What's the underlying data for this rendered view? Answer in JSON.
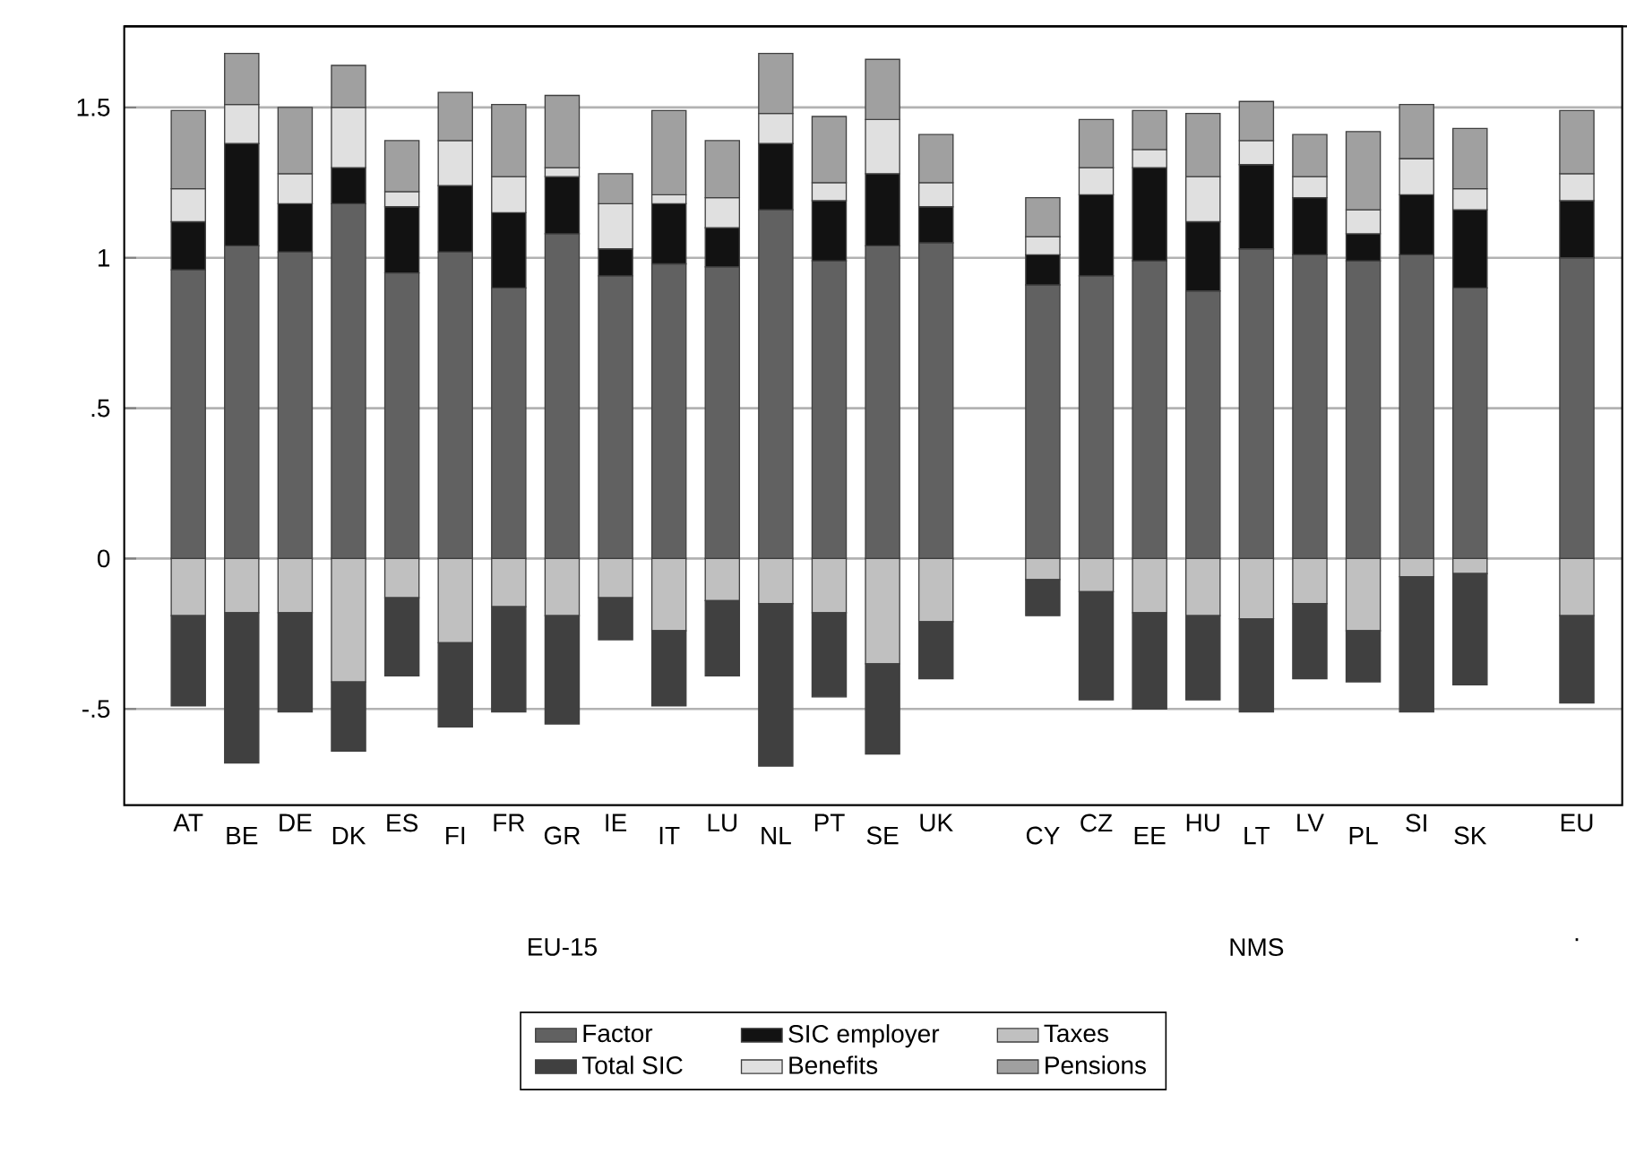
{
  "chart_data": {
    "type": "bar",
    "stacked": true,
    "categories": [
      "AT",
      "BE",
      "DE",
      "DK",
      "ES",
      "FI",
      "FR",
      "GR",
      "IE",
      "IT",
      "LU",
      "NL",
      "PT",
      "SE",
      "UK",
      null,
      "CY",
      "CZ",
      "EE",
      "HU",
      "LT",
      "LV",
      "PL",
      "SI",
      "SK",
      null,
      "EU"
    ],
    "series": [
      {
        "name": "Factor",
        "color": "#616161",
        "values": [
          0.96,
          1.04,
          1.02,
          1.18,
          0.95,
          1.02,
          0.9,
          1.08,
          0.94,
          0.98,
          0.97,
          1.16,
          0.99,
          1.04,
          1.05,
          null,
          0.91,
          0.94,
          0.99,
          0.89,
          1.03,
          1.01,
          0.99,
          1.01,
          0.9,
          null,
          1.0
        ]
      },
      {
        "name": "SIC employer",
        "color": "#121212",
        "values": [
          0.16,
          0.34,
          0.16,
          0.12,
          0.22,
          0.22,
          0.25,
          0.19,
          0.09,
          0.2,
          0.13,
          0.22,
          0.2,
          0.24,
          0.12,
          null,
          0.1,
          0.27,
          0.31,
          0.23,
          0.28,
          0.19,
          0.09,
          0.2,
          0.26,
          null,
          0.19
        ]
      },
      {
        "name": "Taxes",
        "color": "#c0c0c0",
        "values": [
          -0.19,
          -0.18,
          -0.18,
          -0.41,
          -0.13,
          -0.28,
          -0.16,
          -0.19,
          -0.13,
          -0.24,
          -0.14,
          -0.15,
          -0.18,
          -0.35,
          -0.21,
          null,
          -0.07,
          -0.11,
          -0.18,
          -0.19,
          -0.2,
          -0.15,
          -0.24,
          -0.06,
          -0.05,
          null,
          -0.19
        ]
      },
      {
        "name": "Total SIC",
        "color": "#404040",
        "values": [
          -0.3,
          -0.5,
          -0.33,
          -0.23,
          -0.26,
          -0.28,
          -0.35,
          -0.36,
          -0.14,
          -0.25,
          -0.25,
          -0.54,
          -0.28,
          -0.3,
          -0.19,
          null,
          -0.12,
          -0.36,
          -0.32,
          -0.28,
          -0.31,
          -0.25,
          -0.17,
          -0.45,
          -0.37,
          null,
          -0.29
        ]
      },
      {
        "name": "Benefits",
        "color": "#e0e0e0",
        "values": [
          0.11,
          0.13,
          0.1,
          0.2,
          0.05,
          0.15,
          0.12,
          0.03,
          0.15,
          0.03,
          0.1,
          0.1,
          0.06,
          0.18,
          0.08,
          null,
          0.06,
          0.09,
          0.06,
          0.15,
          0.08,
          0.07,
          0.08,
          0.12,
          0.07,
          null,
          0.09
        ]
      },
      {
        "name": "Pensions",
        "color": "#a0a0a0",
        "values": [
          0.26,
          0.17,
          0.22,
          0.14,
          0.17,
          0.16,
          0.24,
          0.24,
          0.1,
          0.28,
          0.19,
          0.2,
          0.22,
          0.2,
          0.16,
          null,
          0.13,
          0.16,
          0.13,
          0.21,
          0.13,
          0.14,
          0.26,
          0.18,
          0.2,
          null,
          0.21
        ]
      }
    ],
    "ylim": [
      -0.82,
      1.77
    ],
    "yticks": [
      {
        "value": -0.5,
        "label": "-.5"
      },
      0,
      {
        "value": 0.5,
        "label": ".5"
      },
      1,
      1.5
    ],
    "grid": "y",
    "legend": "bottom",
    "annotations": [
      "EU-15",
      "NMS",
      "."
    ]
  }
}
